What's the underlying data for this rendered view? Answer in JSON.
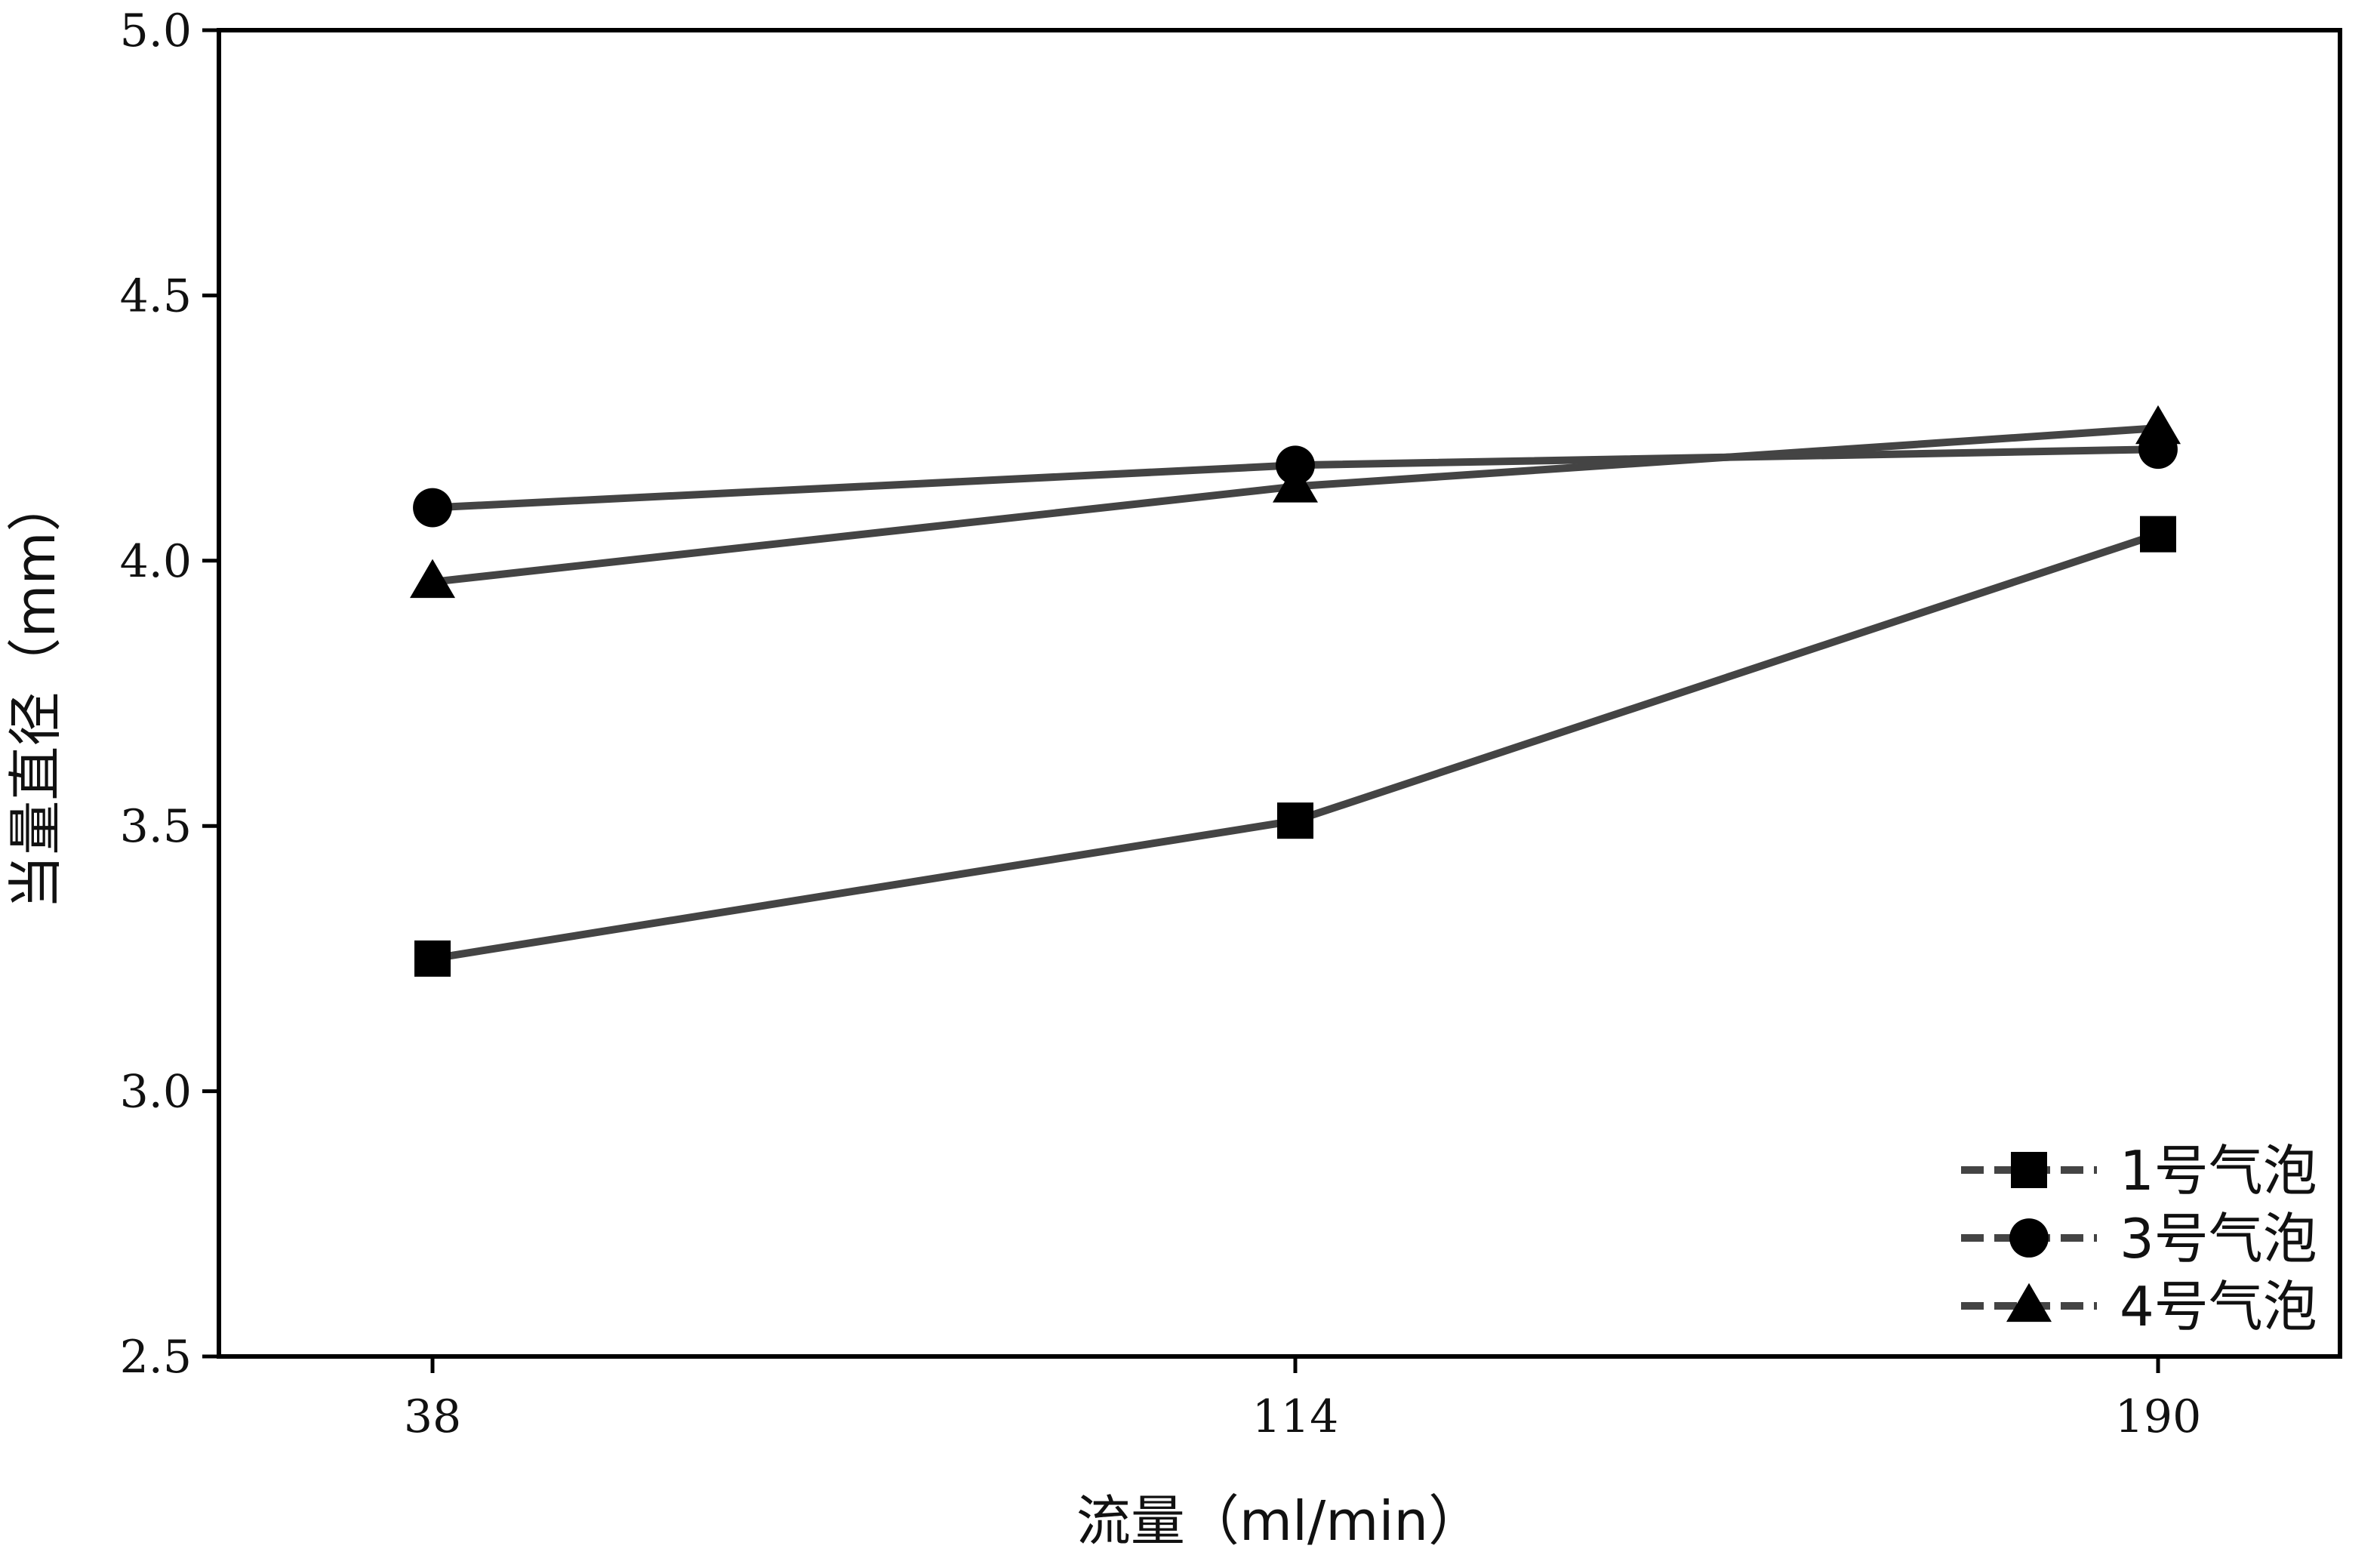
{
  "chart_data": {
    "type": "line",
    "xlabel": "流量（ml/min）",
    "ylabel": "当量直径（mm）",
    "categories": [
      "38",
      "114",
      "190"
    ],
    "ylim": [
      2.5,
      5.0
    ],
    "yticks": [
      "2.5",
      "3.0",
      "3.5",
      "4.0",
      "4.5",
      "5.0"
    ],
    "grid": false,
    "legend_position": "bottom-right",
    "series": [
      {
        "name": "1号气泡",
        "marker": "square",
        "color": "#444444",
        "values": [
          3.25,
          3.51,
          4.05
        ]
      },
      {
        "name": "3号气泡",
        "marker": "circle",
        "color": "#444444",
        "values": [
          4.1,
          4.18,
          4.21
        ]
      },
      {
        "name": "4号气泡",
        "marker": "triangle",
        "color": "#444444",
        "values": [
          3.96,
          4.14,
          4.25
        ]
      }
    ]
  }
}
